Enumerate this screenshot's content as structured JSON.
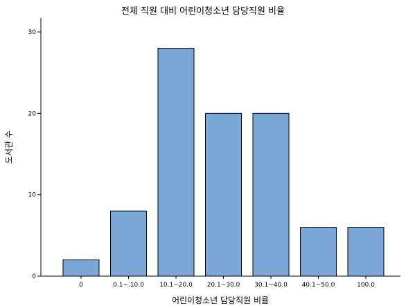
{
  "chart_data": {
    "type": "bar",
    "title": "전체 직원 대비 어린이청소년 담당직원 비율",
    "xlabel": "어린이청소년 담당직원 비율",
    "ylabel": "도서관 수",
    "categories": [
      "0",
      "0.1~.10.0",
      "10.1~20.0",
      "20.1~30.0",
      "30.1~40.0",
      "40.1~50.0",
      "100.0"
    ],
    "values": [
      2,
      8,
      28,
      20,
      20,
      6,
      6
    ],
    "ylim": [
      0,
      30
    ],
    "yticks": [
      0,
      10,
      20,
      30
    ],
    "grid": false,
    "colors": {
      "bar_fill": "#7BA7D7",
      "bar_stroke": "#000000",
      "axis": "#000000"
    }
  }
}
